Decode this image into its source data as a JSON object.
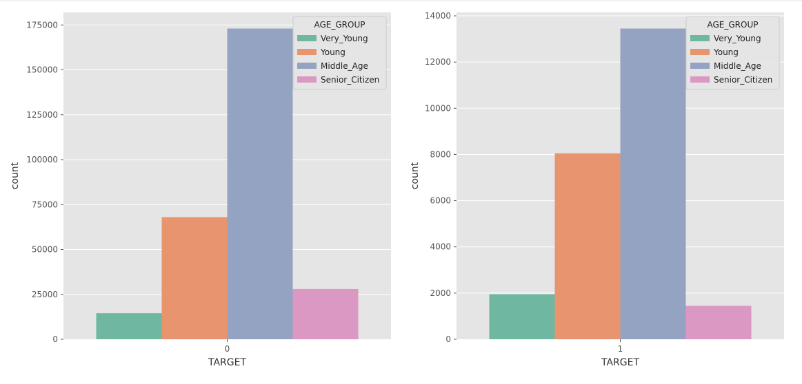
{
  "chart_data": [
    {
      "type": "bar",
      "categories": [
        "0"
      ],
      "series": [
        {
          "name": "Very_Young",
          "values": [
            14500
          ]
        },
        {
          "name": "Young",
          "values": [
            68000
          ]
        },
        {
          "name": "Middle_Age",
          "values": [
            173000
          ]
        },
        {
          "name": "Senior_Citizen",
          "values": [
            28000
          ]
        }
      ],
      "xlabel": "TARGET",
      "ylabel": "count",
      "ylim": [
        0,
        182000
      ],
      "yticks": [
        0,
        25000,
        50000,
        75000,
        100000,
        125000,
        150000,
        175000
      ],
      "legend": {
        "title": "AGE_GROUP",
        "placement": "top-right"
      },
      "grid": true
    },
    {
      "type": "bar",
      "categories": [
        "1"
      ],
      "series": [
        {
          "name": "Very_Young",
          "values": [
            1950
          ]
        },
        {
          "name": "Young",
          "values": [
            8050
          ]
        },
        {
          "name": "Middle_Age",
          "values": [
            13450
          ]
        },
        {
          "name": "Senior_Citizen",
          "values": [
            1450
          ]
        }
      ],
      "xlabel": "TARGET",
      "ylabel": "count",
      "ylim": [
        0,
        14150
      ],
      "yticks": [
        0,
        2000,
        4000,
        6000,
        8000,
        10000,
        12000,
        14000
      ],
      "legend": {
        "title": "AGE_GROUP",
        "placement": "top-right"
      },
      "grid": true
    }
  ],
  "colors": {
    "Very_Young": "#6fb7a0",
    "Young": "#e8956f",
    "Middle_Age": "#95a3c3",
    "Senior_Citizen": "#db98c2",
    "plot_background": "#e5e5e5",
    "grid": "#ffffff"
  }
}
